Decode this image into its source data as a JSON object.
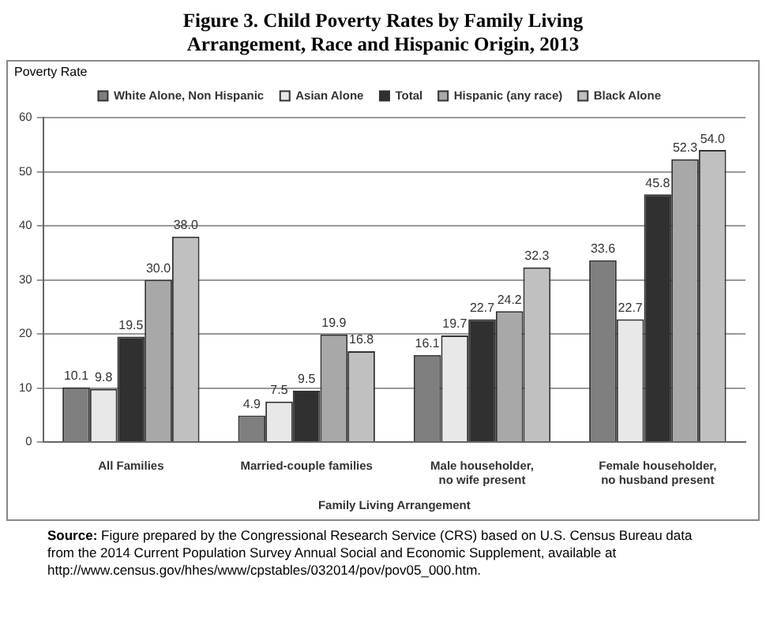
{
  "chart_data": {
    "type": "bar",
    "title": "Figure 3. Child Poverty Rates by Family Living Arrangement, Race and Hispanic Origin, 2013",
    "xlabel": "Family Living Arrangement",
    "ylabel": "Poverty Rate",
    "categories": [
      "All Families",
      "Married-couple families",
      "Male householder, no wife present",
      "Female householder, no husband present"
    ],
    "series": [
      {
        "name": "White Alone, Non Hispanic",
        "color": "#7f7f7f",
        "values": [
          10.1,
          4.9,
          16.1,
          33.6
        ],
        "value_labels": [
          "10.1",
          "4.9",
          "16.1",
          "33.6"
        ]
      },
      {
        "name": "Asian Alone",
        "color": "#e8e8e8",
        "values": [
          9.8,
          7.5,
          19.7,
          22.7
        ],
        "value_labels": [
          "9.8",
          "7.5",
          "19.7",
          "22.7"
        ]
      },
      {
        "name": "Total",
        "color": "#303030",
        "values": [
          19.5,
          9.5,
          22.7,
          45.8
        ],
        "value_labels": [
          "19.5",
          "9.5",
          "22.7",
          "45.8"
        ]
      },
      {
        "name": "Hispanic (any race)",
        "color": "#a8a8a8",
        "values": [
          30.0,
          19.9,
          24.2,
          52.3
        ],
        "value_labels": [
          "30.0",
          "19.9",
          "24.2",
          "52.3"
        ]
      },
      {
        "name": "Black Alone",
        "color": "#c0c0c0",
        "values": [
          38.0,
          16.8,
          32.3,
          54.0
        ],
        "value_labels": [
          "38.0",
          "16.8",
          "32.3",
          "54.0"
        ]
      }
    ],
    "ylim": [
      0,
      60
    ],
    "yticks": [
      0,
      10,
      20,
      30,
      40,
      50,
      60
    ],
    "grid": "y",
    "legend": "top",
    "annotations": [
      "Source: Figure prepared by the Congressional Research Service (CRS) based on U.S. Census Bureau data from the 2014 Current Population Survey Annual Social and Economic Supplement, available at http://www.census.gov/hhes/www/cpstables/032014/pov/pov05_000.htm."
    ]
  }
}
